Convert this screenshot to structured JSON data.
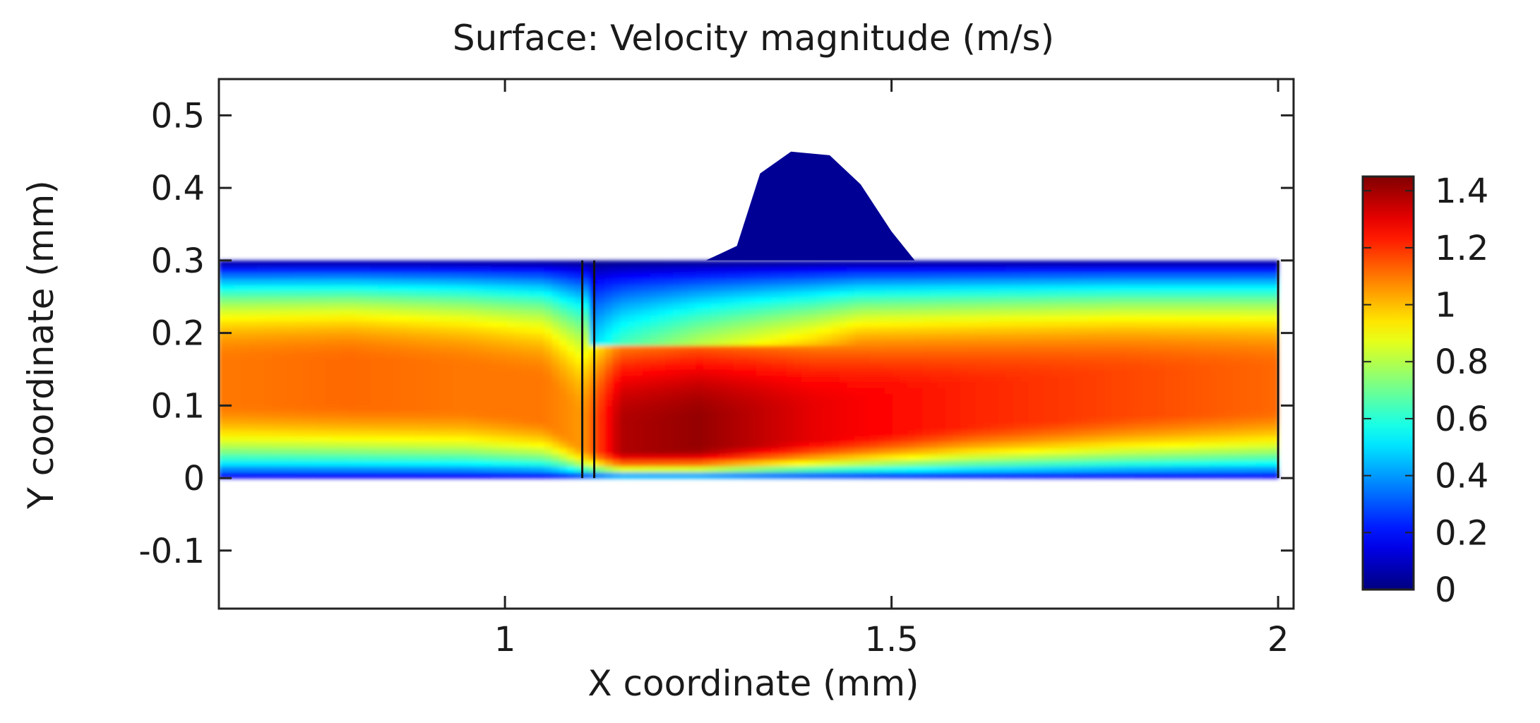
{
  "chart_data": {
    "type": "heatmap",
    "title": "Surface: Velocity magnitude (m/s)",
    "xlabel": "X coordinate (mm)",
    "ylabel": "Y coordinate (mm)",
    "xlim": [
      0.63,
      2.02
    ],
    "ylim": [
      -0.18,
      0.55
    ],
    "x_ticks": [
      {
        "value": 1,
        "label": "1"
      },
      {
        "value": 1.5,
        "label": "1.5"
      },
      {
        "value": 2,
        "label": "2"
      }
    ],
    "y_ticks": [
      {
        "value": 0.5,
        "label": "0.5"
      },
      {
        "value": 0.4,
        "label": "0.4"
      },
      {
        "value": 0.3,
        "label": "0.3"
      },
      {
        "value": 0.2,
        "label": "0.2"
      },
      {
        "value": 0.1,
        "label": "0.1"
      },
      {
        "value": 0,
        "label": "0"
      },
      {
        "value": -0.1,
        "label": "-0.1"
      }
    ],
    "colorbar": {
      "min": 0,
      "max": 1.45,
      "colormap": "jet",
      "ticks": [
        {
          "value": 1.4,
          "label": "1.4"
        },
        {
          "value": 1.2,
          "label": "1.2"
        },
        {
          "value": 1,
          "label": "1"
        },
        {
          "value": 0.8,
          "label": "0.8"
        },
        {
          "value": 0.6,
          "label": "0.6"
        },
        {
          "value": 0.4,
          "label": "0.4"
        },
        {
          "value": 0.2,
          "label": "0.2"
        },
        {
          "value": 0,
          "label": "0"
        }
      ]
    },
    "channel": {
      "x_start": 0.63,
      "x_end": 2.0,
      "y_bottom": 0,
      "y_top": 0.3
    },
    "bump_outline": [
      [
        1.26,
        0.3
      ],
      [
        1.3,
        0.32
      ],
      [
        1.33,
        0.42
      ],
      [
        1.37,
        0.45
      ],
      [
        1.42,
        0.445
      ],
      [
        1.46,
        0.405
      ],
      [
        1.5,
        0.34
      ],
      [
        1.53,
        0.3
      ]
    ],
    "baffle": {
      "x_left": 1.1,
      "x_right": 1.11,
      "y_bottom": 0,
      "y_top": 0.3
    },
    "profile_samples": [
      {
        "x": 0.65,
        "y_center": 0.15,
        "peak": 1.1
      },
      {
        "x": 0.8,
        "y_center": 0.15,
        "peak": 1.12
      },
      {
        "x": 0.95,
        "y_center": 0.14,
        "peak": 1.1
      },
      {
        "x": 1.05,
        "y_center": 0.12,
        "peak": 1.1
      },
      {
        "x": 1.1,
        "y_center": 0.06,
        "peak": 1.05
      },
      {
        "x": 1.15,
        "y_center": 0.055,
        "peak": 1.38
      },
      {
        "x": 1.25,
        "y_center": 0.06,
        "peak": 1.42
      },
      {
        "x": 1.4,
        "y_center": 0.08,
        "peak": 1.3
      },
      {
        "x": 1.6,
        "y_center": 0.11,
        "peak": 1.22
      },
      {
        "x": 1.8,
        "y_center": 0.13,
        "peak": 1.17
      },
      {
        "x": 2.0,
        "y_center": 0.14,
        "peak": 1.12
      }
    ]
  }
}
